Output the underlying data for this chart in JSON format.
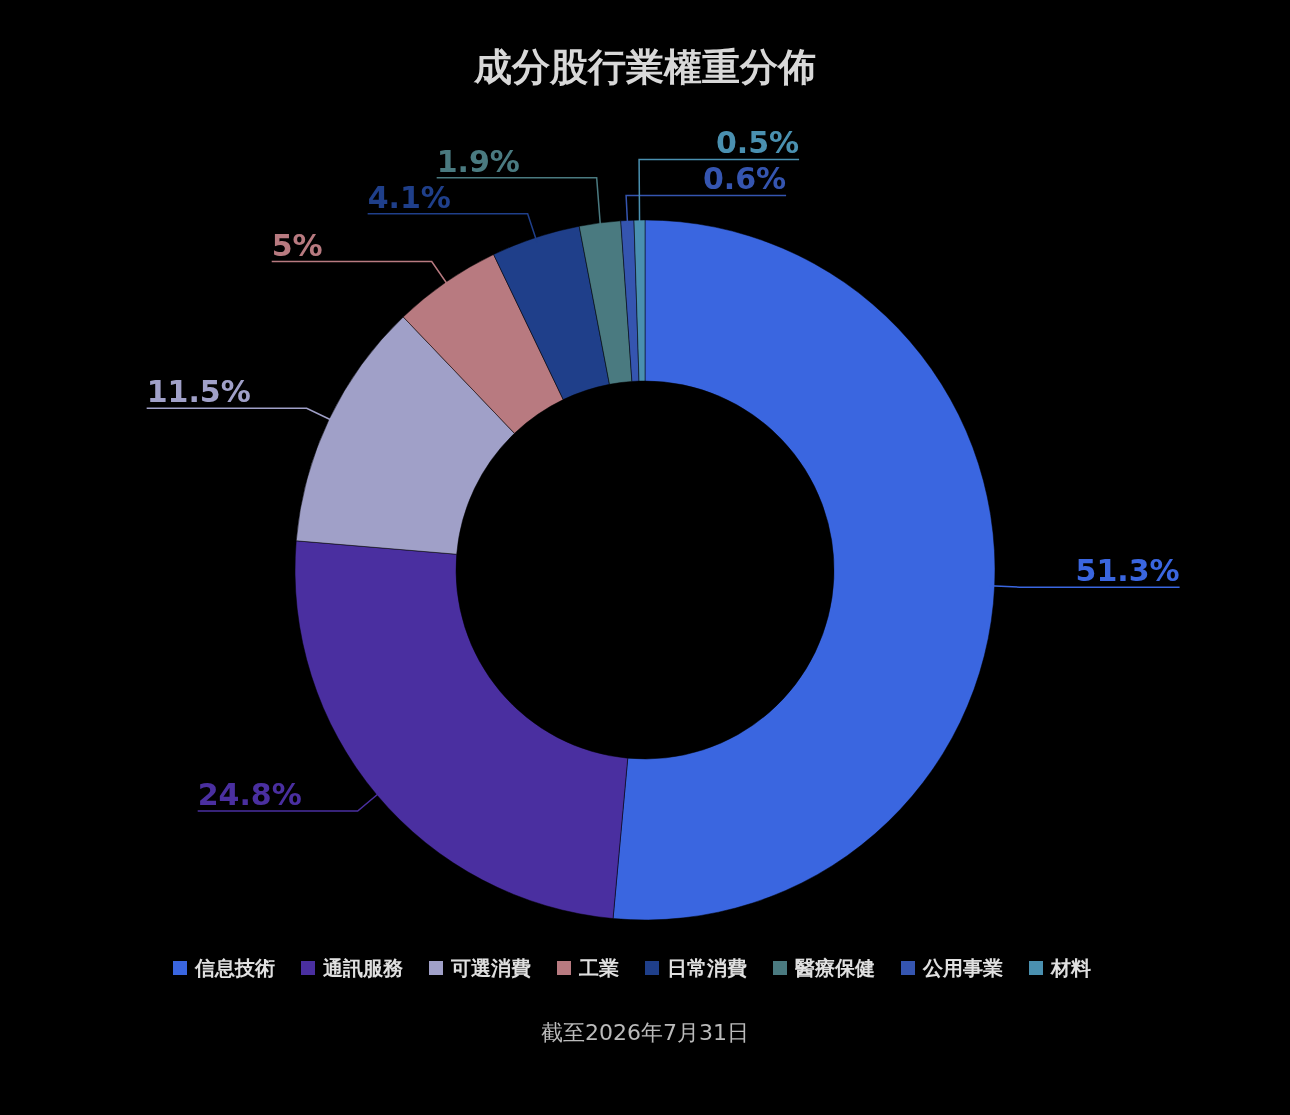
{
  "chart_data": {
    "type": "donut",
    "title": "成分股行業權重分佈",
    "categories": [
      "信息技術",
      "通訊服務",
      "可選消費",
      "工業",
      "日常消費",
      "醫療保健",
      "公用事業",
      "材料"
    ],
    "values": [
      51.3,
      24.8,
      11.5,
      5,
      4.1,
      1.9,
      0.6,
      0.5
    ],
    "colors": [
      "#3a66e0",
      "#4a2fa0",
      "#a0a0c8",
      "#b87a80",
      "#1f3f8a",
      "#4a7a80",
      "#3555b0",
      "#4a90b0"
    ],
    "value_labels": [
      "51.3%",
      "24.8%",
      "11.5%",
      "5%",
      "4.1%",
      "1.9%",
      "0.6%",
      "0.5%"
    ],
    "legend": "bottom",
    "annotations": [
      "截至2026年7月31日"
    ]
  }
}
